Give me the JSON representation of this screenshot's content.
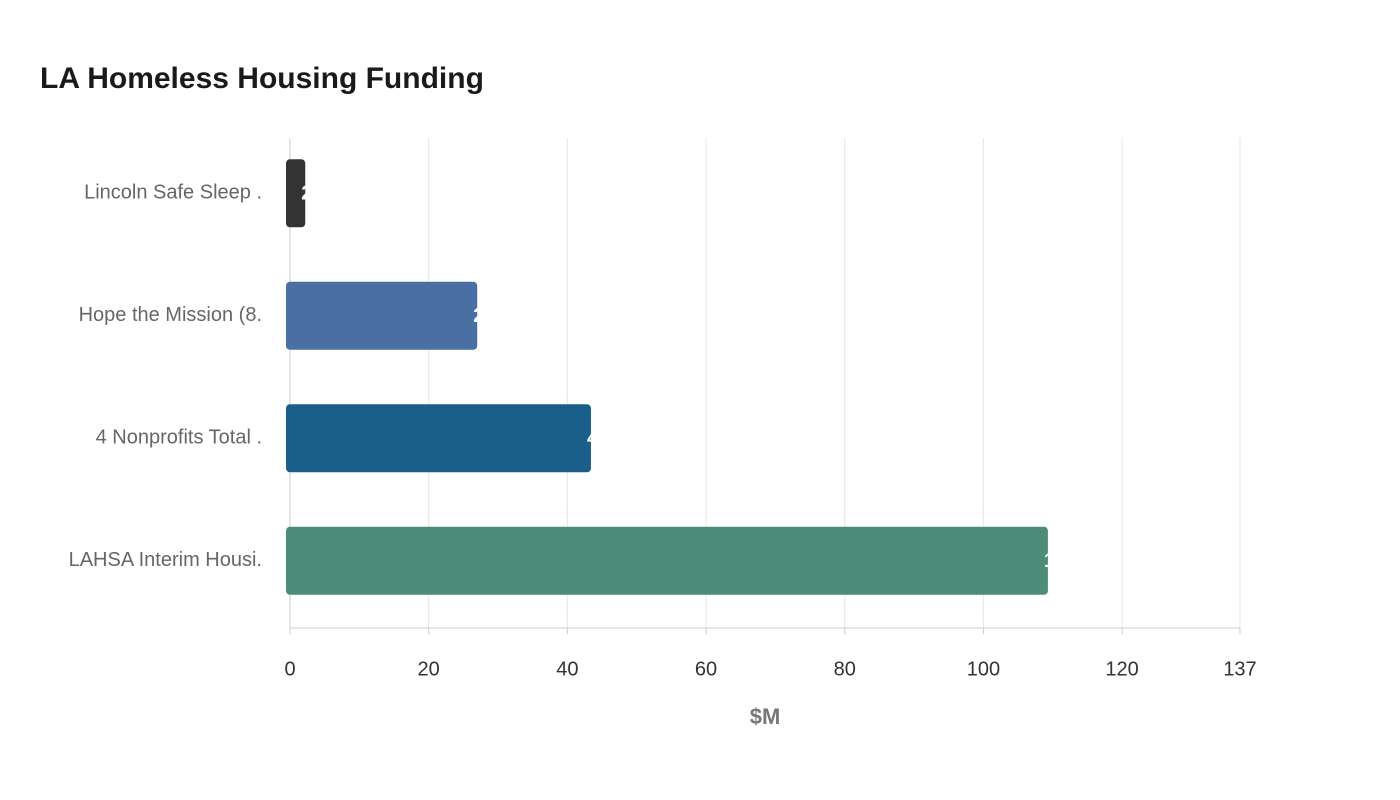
{
  "chart_data": {
    "type": "hbar",
    "title": "LA Homeless Housing Funding",
    "categories": [
      "Lincoln Safe Sleep .",
      "Hope the Mission (8.",
      "4 Nonprofits Total .",
      "LAHSA Interim Housi."
    ],
    "values": [
      2.2,
      27,
      43.4,
      109.3
    ],
    "colors": [
      "#333333",
      "#4a6fa5",
      "#1a5f8a",
      "#4e8c7a"
    ],
    "x_label": "$M",
    "xlim": [
      0,
      137
    ],
    "xticks": [
      0,
      20,
      40,
      60,
      80,
      100,
      120,
      137
    ],
    "grid": true
  }
}
